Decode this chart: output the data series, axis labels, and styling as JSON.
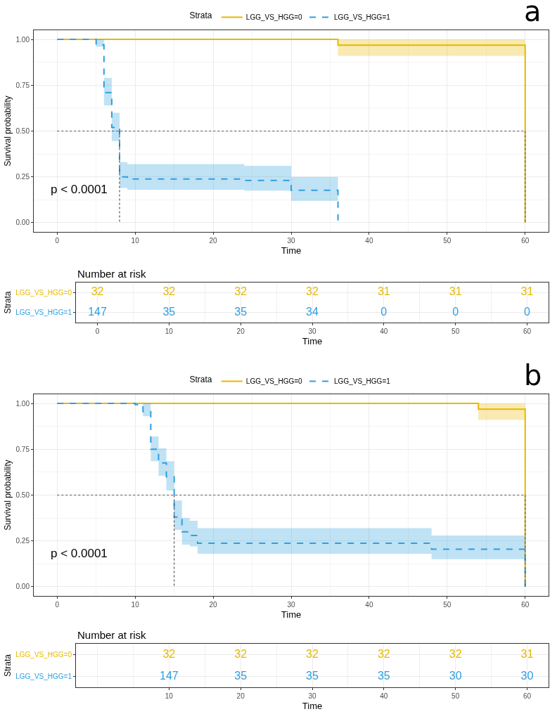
{
  "chart_data": [
    {
      "type": "step",
      "xlabel": "Time",
      "ylabel": "Survival probability",
      "legend_title": "Strata",
      "legend": "top",
      "grid": true,
      "xlim": [
        -3,
        63
      ],
      "ylim": [
        -0.05,
        1.05
      ],
      "xticks": [
        0,
        10,
        20,
        30,
        40,
        50,
        60
      ],
      "yticks": [
        {
          "value": 0,
          "label": "0.00"
        },
        {
          "value": 0.25,
          "label": "0.25"
        },
        {
          "value": 0.5,
          "label": "0.50"
        },
        {
          "value": 0.75,
          "label": "0.75"
        },
        {
          "value": 1,
          "label": "1.00"
        }
      ],
      "annotations": [
        "p < 0.0001",
        "a"
      ],
      "series": [
        {
          "name": "LGG_VS_HGG=0",
          "color": "#e7b800",
          "line_style": "solid",
          "x": [
            0,
            36,
            60
          ],
          "values": [
            1,
            0.969,
            0
          ],
          "lower": [
            null,
            0.91,
            0.91
          ],
          "upper": [
            null,
            1,
            1
          ]
        },
        {
          "name": "LGG_VS_HGG=1",
          "color": "#2e9fdf",
          "line_style": "dashed",
          "x": [
            0,
            5,
            6,
            7,
            8,
            9,
            24,
            30,
            36
          ],
          "values": [
            1,
            0.97,
            0.71,
            0.52,
            0.25,
            0.238,
            0.231,
            0.177,
            0
          ],
          "lower": [
            null,
            0.96,
            0.64,
            0.445,
            0.19,
            0.18,
            0.175,
            0.12,
            0.12
          ],
          "upper": [
            null,
            1,
            0.79,
            0.6,
            0.33,
            0.32,
            0.31,
            0.25,
            0.25
          ]
        },
        {
          "type": "line",
          "color": "#555555",
          "line_style": "dotted",
          "x": [
            0,
            60
          ],
          "values": [
            0.5,
            0.5
          ]
        },
        {
          "type": "line",
          "color": "#555555",
          "line_style": "dotted",
          "x": [
            8,
            8
          ],
          "values": [
            0.5,
            0
          ]
        },
        {
          "type": "line",
          "color": "#555555",
          "line_style": "dotted",
          "x": [
            60,
            60
          ],
          "values": [
            0.5,
            0
          ]
        }
      ]
    },
    {
      "type": "heatmap",
      "title": "Number at risk",
      "xlabel": "Time",
      "ylabel": "Strata",
      "grid": true,
      "categories": [
        "0",
        "10",
        "20",
        "30",
        "40",
        "50",
        "60"
      ],
      "y_categories": [
        "LGG_VS_HGG=0",
        "LGG_VS_HGG=1"
      ],
      "colors": [
        "#e7b800",
        "#2e9fdf"
      ],
      "data_labels": true,
      "cells": [
        [
          32,
          32,
          32,
          32,
          31,
          31,
          31
        ],
        [
          147,
          35,
          35,
          34,
          0,
          0,
          0
        ]
      ]
    },
    {
      "type": "step",
      "xlabel": "Time",
      "ylabel": "Survival probability",
      "legend_title": "Strata",
      "legend": "top",
      "grid": true,
      "xlim": [
        -3,
        63
      ],
      "ylim": [
        -0.05,
        1.05
      ],
      "xticks": [
        0,
        10,
        20,
        30,
        40,
        50,
        60
      ],
      "yticks": [
        {
          "value": 0,
          "label": "0.00"
        },
        {
          "value": 0.25,
          "label": "0.25"
        },
        {
          "value": 0.5,
          "label": "0.50"
        },
        {
          "value": 0.75,
          "label": "0.75"
        },
        {
          "value": 1,
          "label": "1.00"
        }
      ],
      "annotations": [
        "p < 0.0001",
        "b"
      ],
      "series": [
        {
          "name": "LGG_VS_HGG=0",
          "color": "#e7b800",
          "line_style": "solid",
          "x": [
            0,
            54,
            60
          ],
          "values": [
            1,
            0.969,
            0
          ],
          "lower": [
            null,
            0.91,
            0.91
          ],
          "upper": [
            null,
            1,
            1
          ]
        },
        {
          "name": "LGG_VS_HGG=1",
          "color": "#2e9fdf",
          "line_style": "dashed",
          "x": [
            0,
            10,
            11,
            12,
            13,
            14,
            15,
            16,
            17,
            18,
            48,
            60
          ],
          "values": [
            1,
            0.993,
            0.955,
            0.75,
            0.675,
            0.6,
            0.38,
            0.3,
            0.28,
            0.237,
            0.205,
            0
          ],
          "lower": [
            null,
            null,
            0.93,
            0.685,
            0.605,
            0.525,
            0.31,
            0.23,
            0.22,
            0.18,
            0.15,
            0.15
          ],
          "upper": [
            null,
            null,
            1,
            0.82,
            0.755,
            0.685,
            0.47,
            0.375,
            0.36,
            0.32,
            0.28,
            0.28
          ]
        },
        {
          "type": "line",
          "color": "#555555",
          "line_style": "dotted",
          "x": [
            0,
            60
          ],
          "values": [
            0.5,
            0.5
          ]
        },
        {
          "type": "line",
          "color": "#555555",
          "line_style": "dotted",
          "x": [
            15,
            15
          ],
          "values": [
            0.5,
            0
          ]
        },
        {
          "type": "line",
          "color": "#555555",
          "line_style": "dotted",
          "x": [
            60,
            60
          ],
          "values": [
            0.5,
            0
          ]
        }
      ]
    },
    {
      "type": "heatmap",
      "title": "Number at risk",
      "xlabel": "Time",
      "ylabel": "Strata",
      "grid": true,
      "categories": [
        null,
        "10",
        "20",
        "30",
        "40",
        "50",
        "60"
      ],
      "y_categories": [
        "LGG_VS_HGG=0",
        "LGG_VS_HGG=1"
      ],
      "colors": [
        "#e7b800",
        "#2e9fdf"
      ],
      "data_labels": true,
      "cells": [
        [
          null,
          32,
          32,
          32,
          32,
          32,
          31
        ],
        [
          null,
          147,
          35,
          35,
          35,
          30,
          30
        ]
      ]
    }
  ]
}
